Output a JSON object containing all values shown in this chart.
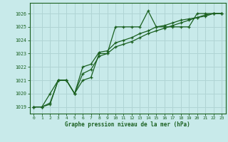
{
  "title": "Graphe pression niveau de la mer (hPa)",
  "background_color": "#c8eaea",
  "grid_color": "#b0d4d4",
  "line_color": "#1a6020",
  "xlim": [
    -0.5,
    23.5
  ],
  "ylim": [
    1018.5,
    1026.8
  ],
  "yticks": [
    1019,
    1020,
    1021,
    1022,
    1023,
    1024,
    1025,
    1026
  ],
  "xticks": [
    0,
    1,
    2,
    3,
    4,
    5,
    6,
    7,
    8,
    9,
    10,
    11,
    12,
    13,
    14,
    15,
    16,
    17,
    18,
    19,
    20,
    21,
    22,
    23
  ],
  "series1_x": [
    0,
    1,
    2,
    3,
    4,
    5,
    6,
    7,
    8,
    9,
    10,
    11,
    12,
    13,
    14,
    15,
    16,
    17,
    18,
    19,
    20,
    21,
    22,
    23
  ],
  "series1_y": [
    1019,
    1019,
    1020,
    1021,
    1021,
    1020,
    1021,
    1021.2,
    1023,
    1023,
    1025,
    1025,
    1025,
    1025,
    1026.2,
    1025,
    1025,
    1025,
    1025,
    1025,
    1026,
    1026,
    1026,
    1026
  ],
  "series2_x": [
    0,
    1,
    2,
    3,
    4,
    5,
    6,
    7,
    8,
    9,
    10,
    11,
    12,
    13,
    14,
    15,
    16,
    17,
    18,
    19,
    20,
    21,
    22,
    23
  ],
  "series2_y": [
    1019,
    1019,
    1019.3,
    1021,
    1021,
    1020,
    1022,
    1022.2,
    1023.1,
    1023.2,
    1023.8,
    1024.0,
    1024.2,
    1024.5,
    1024.7,
    1025.0,
    1025.1,
    1025.3,
    1025.5,
    1025.6,
    1025.7,
    1025.8,
    1026.0,
    1026.0
  ],
  "series3_x": [
    0,
    1,
    2,
    3,
    4,
    5,
    6,
    7,
    8,
    9,
    10,
    11,
    12,
    13,
    14,
    15,
    16,
    17,
    18,
    19,
    20,
    21,
    22,
    23
  ],
  "series3_y": [
    1019,
    1019,
    1019.2,
    1021,
    1021,
    1020,
    1021.5,
    1021.8,
    1022.8,
    1023.0,
    1023.5,
    1023.7,
    1023.9,
    1024.2,
    1024.5,
    1024.7,
    1024.9,
    1025.1,
    1025.3,
    1025.5,
    1025.7,
    1025.9,
    1026.0,
    1026.0
  ]
}
